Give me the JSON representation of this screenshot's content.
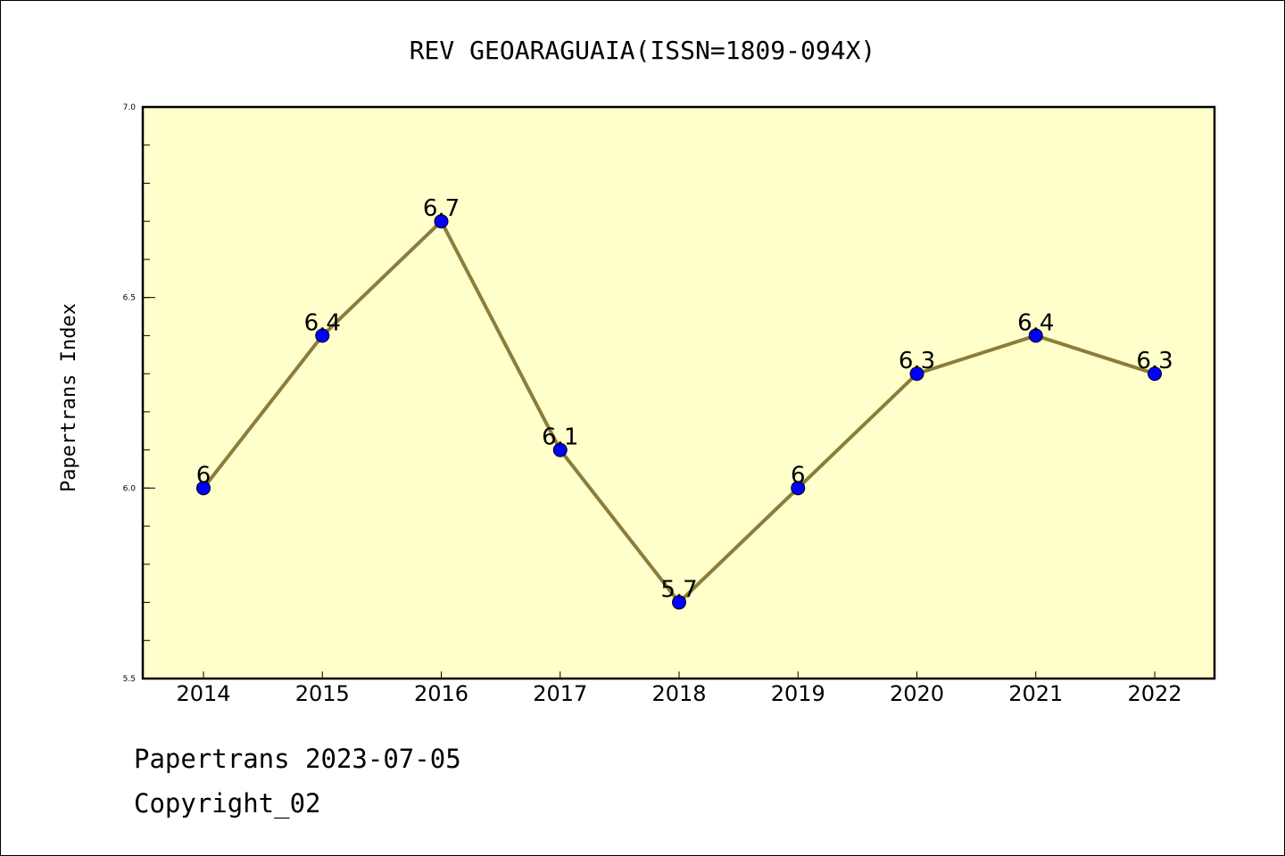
{
  "chart_data": {
    "type": "line",
    "title": "REV GEOARAGUAIA(ISSN=1809-094X)",
    "xlabel": "",
    "ylabel": "Papertrans Index",
    "categories": [
      "2014",
      "2015",
      "2016",
      "2017",
      "2018",
      "2019",
      "2020",
      "2021",
      "2022"
    ],
    "series": [
      {
        "values": [
          6,
          6.4,
          6.7,
          6.1,
          5.7,
          6,
          6.3,
          6.4,
          6.3
        ]
      }
    ],
    "data_labels": [
      "6",
      "6.4",
      "6.7",
      "6.1",
      "5.7",
      "6",
      "6.3",
      "6.4",
      "6.3"
    ],
    "ylim": [
      5.5,
      7.0
    ],
    "yticks": [
      "5.5",
      "6.0",
      "6.5",
      "7.0"
    ],
    "grid": false,
    "colors": {
      "plot_background": "#ffffcc",
      "line": "#8b7d3a",
      "marker": "#0000ff"
    }
  },
  "footer": {
    "line1": "Papertrans 2023-07-05",
    "line2": "Copyright_02"
  }
}
